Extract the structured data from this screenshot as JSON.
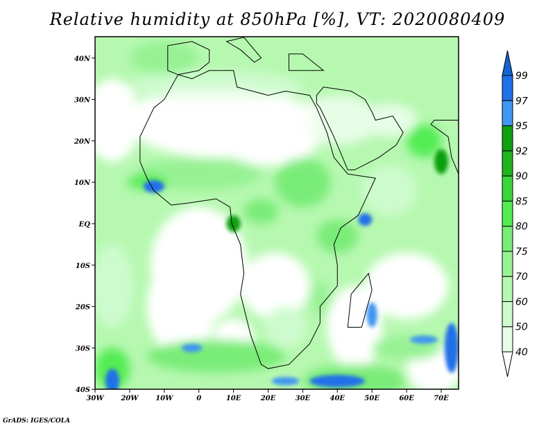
{
  "title": "Relative humidity at 850hPa [%], VT: 2020080409",
  "credit": "GrADS: IGES/COLA",
  "map": {
    "lon_range": [
      -30,
      75
    ],
    "lat_range": [
      -40,
      45
    ],
    "x_ticks": [
      {
        "lon": -30,
        "label": "30W"
      },
      {
        "lon": -20,
        "label": "20W"
      },
      {
        "lon": -10,
        "label": "10W"
      },
      {
        "lon": 0,
        "label": "0"
      },
      {
        "lon": 10,
        "label": "10E"
      },
      {
        "lon": 20,
        "label": "20E"
      },
      {
        "lon": 30,
        "label": "30E"
      },
      {
        "lon": 40,
        "label": "40E"
      },
      {
        "lon": 50,
        "label": "50E"
      },
      {
        "lon": 60,
        "label": "60E"
      },
      {
        "lon": 70,
        "label": "70E"
      }
    ],
    "y_ticks": [
      {
        "lat": 40,
        "label": "40N"
      },
      {
        "lat": 30,
        "label": "30N"
      },
      {
        "lat": 20,
        "label": "20N"
      },
      {
        "lat": 10,
        "label": "10N"
      },
      {
        "lat": 0,
        "label": "EQ"
      },
      {
        "lat": -10,
        "label": "10S"
      },
      {
        "lat": -20,
        "label": "20S"
      },
      {
        "lat": -30,
        "label": "30S"
      },
      {
        "lat": -40,
        "label": "40S"
      }
    ]
  },
  "colorbar": {
    "levels": [
      "40",
      "50",
      "60",
      "70",
      "75",
      "80",
      "85",
      "90",
      "92",
      "95",
      "97",
      "99"
    ],
    "colors": [
      "#ffffff",
      "#e6fde6",
      "#cefbce",
      "#b6f8b0",
      "#98f294",
      "#7aec78",
      "#52ec52",
      "#3cd43c",
      "#20b420",
      "#10a010",
      "#4096f0",
      "#2070e8",
      "#1464d2"
    ]
  }
}
